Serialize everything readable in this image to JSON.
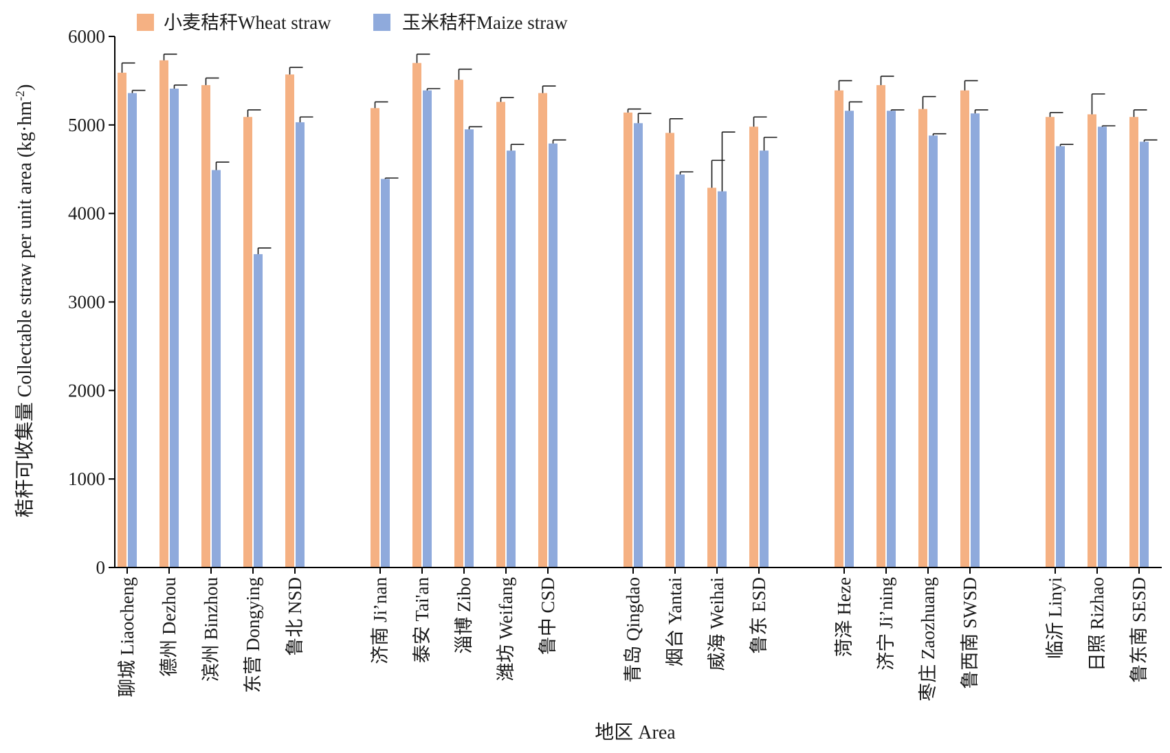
{
  "chart_data": {
    "type": "bar",
    "xlabel": "地区 Area",
    "ylabel": "秸秆可收集量 Collectable straw per unit area (kg·hm",
    "ylabel_sup": "-2",
    "ylabel_end": ")",
    "ylim": [
      0,
      6000
    ],
    "yticks": [
      0,
      1000,
      2000,
      3000,
      4000,
      5000,
      6000
    ],
    "legend_position": "top-left",
    "groups": [
      [
        "聊城 Liaocheng",
        "德州 Dezhou",
        "滨州 Binzhou",
        "东营 Dongying",
        "鲁北 NSD"
      ],
      [
        "济南 Ji’nan",
        "泰安 Tai'an",
        "淄博 Zibo",
        "潍坊 Weifang",
        "鲁中 CSD"
      ],
      [
        "青岛 Qingdao",
        "烟台 Yantai",
        "威海 Weihai",
        "鲁东 ESD"
      ],
      [
        "菏泽 Heze",
        "济宁 Ji’ning",
        "枣庄 Zaozhuang",
        "鲁西南 SWSD"
      ],
      [
        "临沂 Linyi",
        "日照 Rizhao",
        "鲁东南 SESD"
      ]
    ],
    "series": [
      {
        "name": "小麦秸秆Wheat straw",
        "color": "#F5B183",
        "values": [
          5590,
          5730,
          5450,
          5090,
          5570,
          5190,
          5700,
          5510,
          5260,
          5360,
          5140,
          4910,
          4290,
          4980,
          5390,
          5450,
          5180,
          5390,
          5090,
          5120,
          5090
        ],
        "errors": [
          110,
          70,
          80,
          80,
          80,
          70,
          100,
          120,
          50,
          80,
          40,
          160,
          310,
          110,
          110,
          100,
          140,
          110,
          50,
          230,
          80
        ]
      },
      {
        "name": "玉米秸秆Maize straw",
        "color": "#8FAADC",
        "values": [
          5360,
          5410,
          4490,
          3540,
          5030,
          4390,
          5390,
          4950,
          4710,
          4790,
          5020,
          4440,
          4250,
          4710,
          5160,
          5160,
          4880,
          5130,
          4760,
          4980,
          4810
        ],
        "errors": [
          30,
          40,
          90,
          70,
          60,
          10,
          20,
          30,
          70,
          40,
          110,
          30,
          670,
          150,
          100,
          10,
          20,
          40,
          20,
          10,
          20
        ]
      }
    ]
  }
}
